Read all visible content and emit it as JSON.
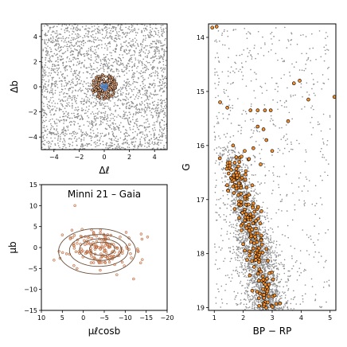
{
  "chart_data": [
    {
      "id": "sky",
      "type": "scatter",
      "xlabel": "Δℓ",
      "ylabel": "Δb",
      "xlim": [
        -5,
        5
      ],
      "ylim": [
        -5,
        5
      ],
      "xticks": [
        -4,
        -2,
        0,
        2,
        4
      ],
      "yticks": [
        -4,
        -2,
        0,
        2,
        4
      ],
      "series": [
        {
          "role": "field",
          "color": "#8c8c8c",
          "distribution": "uniform",
          "x_range": [
            -5,
            5
          ],
          "y_range": [
            -5,
            5
          ]
        },
        {
          "role": "members",
          "color": "#f4b183",
          "edge": "#000000",
          "center": [
            0,
            0
          ],
          "radius": 1.0
        },
        {
          "role": "core",
          "color": "#4a7fc1",
          "center": [
            0,
            0
          ],
          "radius": 0.3
        }
      ]
    },
    {
      "id": "proper-motion",
      "type": "scatter",
      "title": "Minni 21  –  Gaia",
      "xlabel": "μℓcosb",
      "ylabel": "μb",
      "xlim": [
        10,
        -20
      ],
      "ylim": [
        -15,
        15
      ],
      "xticks": [
        10,
        5,
        0,
        -5,
        -10,
        -15,
        -20
      ],
      "yticks": [
        -15,
        -10,
        -5,
        0,
        5,
        10,
        15
      ],
      "center": [
        -4.5,
        -0.3
      ],
      "contours": [
        {
          "rx": 3.0,
          "ry": 1.6
        },
        {
          "rx": 5.0,
          "ry": 2.6
        },
        {
          "rx": 7.0,
          "ry": 3.8
        },
        {
          "rx": 9.2,
          "ry": 5.4
        }
      ],
      "contour_color": "#6b4f3a",
      "point_color": "#f4b183",
      "point_edge": "#a0522d"
    },
    {
      "id": "cmd",
      "type": "scatter",
      "xlabel": "BP − RP",
      "ylabel": "G",
      "xlim": [
        0.8,
        5.2
      ],
      "ylim": [
        19.05,
        13.75
      ],
      "xticks": [
        1,
        2,
        3,
        4,
        5
      ],
      "yticks": [
        14,
        15,
        16,
        17,
        18,
        19
      ],
      "y_inverted": true,
      "field_color": "#8c8c8c",
      "member_color": "#f28e2b",
      "member_edge": "#000000",
      "members": [
        [
          0.93,
          13.82
        ],
        [
          1.08,
          13.8
        ],
        [
          1.2,
          15.2
        ],
        [
          1.45,
          15.3
        ],
        [
          2.25,
          15.35
        ],
        [
          2.5,
          15.35
        ],
        [
          2.75,
          15.35
        ],
        [
          2.95,
          15.35
        ],
        [
          3.55,
          15.55
        ],
        [
          3.75,
          14.85
        ],
        [
          3.95,
          14.8
        ],
        [
          4.25,
          15.15
        ],
        [
          5.15,
          15.1
        ],
        [
          1.65,
          16.0
        ],
        [
          2.5,
          15.65
        ],
        [
          2.8,
          15.9
        ],
        [
          3.0,
          16.1
        ],
        [
          2.2,
          16.25
        ],
        [
          2.6,
          16.35
        ],
        [
          1.75,
          16.5
        ],
        [
          2.05,
          16.1
        ],
        [
          2.35,
          16.05
        ],
        [
          2.7,
          15.7
        ]
      ]
    }
  ]
}
